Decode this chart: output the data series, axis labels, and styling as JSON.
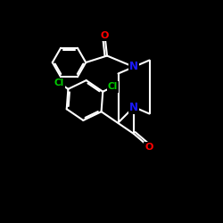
{
  "background_color": "#000000",
  "bond_color": "#ffffff",
  "bond_width": 1.5,
  "atom_colors": {
    "N": "#1a1aff",
    "O": "#ff0000",
    "Cl": "#00cc00",
    "C": "#ffffff"
  },
  "figsize": [
    2.5,
    2.5
  ],
  "dpi": 100,
  "xlim": [
    0,
    10
  ],
  "ylim": [
    0,
    10
  ]
}
